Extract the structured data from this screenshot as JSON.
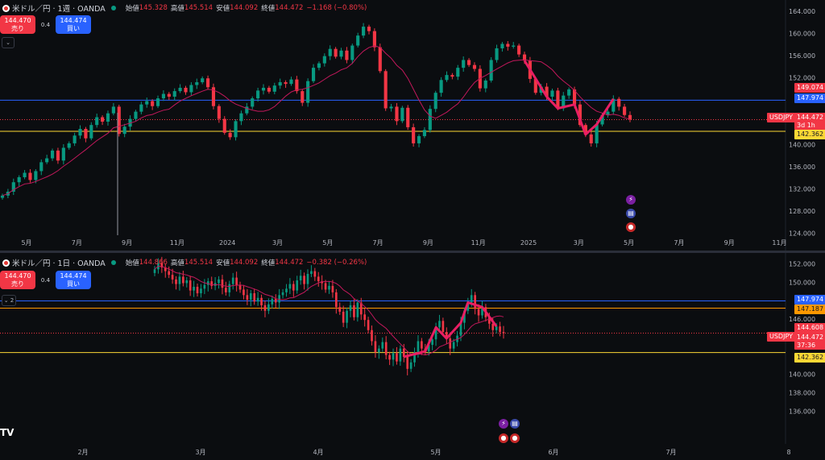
{
  "top": {
    "symbol": "米ドル／円 · 1週 · OANDA",
    "ohlc": {
      "open_label": "始値",
      "open": "145.328",
      "high_label": "高値",
      "high": "145.514",
      "low_label": "安値",
      "low": "144.092",
      "close_label": "終値",
      "close": "144.472",
      "change": "−1.168 (−0.80%)"
    },
    "sell": {
      "price": "144.470",
      "label": "売り"
    },
    "buy": {
      "price": "144.474",
      "label": "買い"
    },
    "spread": "0.4",
    "collapse": "⌄",
    "price_axis": [
      {
        "label": "164.000",
        "v": 164
      },
      {
        "label": "160.000",
        "v": 160
      },
      {
        "label": "156.000",
        "v": 156
      },
      {
        "label": "152.000",
        "v": 152
      },
      {
        "label": "140.000",
        "v": 140
      },
      {
        "label": "136.000",
        "v": 136
      },
      {
        "label": "132.000",
        "v": 132
      },
      {
        "label": "128.000",
        "v": 128
      },
      {
        "label": "124.000",
        "v": 124
      }
    ],
    "time_axis": [
      "5月",
      "7月",
      "9月",
      "11月",
      "2024",
      "3月",
      "5月",
      "7月",
      "9月",
      "11月",
      "2025",
      "3月",
      "5月",
      "7月",
      "9月",
      "11月"
    ],
    "tags": {
      "ma": "149.074",
      "blue": "147.974",
      "symbol": "USDJPY",
      "price": "144.472",
      "countdown": "3d 1h",
      "yellow": "142.362"
    },
    "levels": {
      "blue": 147.974,
      "yellow": 142.362,
      "price": 144.472,
      "ma": 149.074
    }
  },
  "bottom": {
    "symbol": "米ドル／円 · 1日 · OANDA",
    "ohlc": {
      "open_label": "始値",
      "open": "144.866",
      "high_label": "高値",
      "high": "145.514",
      "low_label": "安値",
      "low": "144.092",
      "close_label": "終値",
      "close": "144.472",
      "change": "−0.382 (−0.26%)"
    },
    "sell": {
      "price": "144.470",
      "label": "売り"
    },
    "buy": {
      "price": "144.474",
      "label": "買い"
    },
    "spread": "0.4",
    "collapse": "⌄ 2",
    "price_axis": [
      {
        "label": "152.000",
        "v": 152
      },
      {
        "label": "150.000",
        "v": 150
      },
      {
        "label": "146.000",
        "v": 146
      },
      {
        "label": "140.000",
        "v": 140
      },
      {
        "label": "138.000",
        "v": 138
      },
      {
        "label": "136.000",
        "v": 136
      }
    ],
    "time_axis": [
      "2月",
      "3月",
      "4月",
      "5月",
      "6月",
      "7月",
      "8"
    ],
    "tags": {
      "blue": "147.974",
      "orange": "147.187",
      "ma": "144.608",
      "symbol": "USDJPY",
      "price": "144.472",
      "countdown": "37:36",
      "yellow": "142.362"
    },
    "levels": {
      "blue": 147.974,
      "orange": 147.187,
      "yellow": 142.362,
      "price": 144.472,
      "ma": 144.608
    }
  },
  "logo_text": "TV",
  "colors": {
    "up": "#089981",
    "down": "#f23645",
    "blue_line": "#2962ff",
    "yellow_line": "#fdd835",
    "orange_line": "#ff9800",
    "ma": "#c2185b",
    "pink": "#e91e63"
  },
  "chart_data": [
    {
      "type": "candlestick",
      "title": "米ドル／円 · 1週 · OANDA",
      "ylim": [
        122.5,
        166
      ],
      "y_ticks": [
        164,
        160,
        156,
        152,
        140,
        136,
        132,
        128,
        124
      ],
      "x_ticks": [
        "5月",
        "7月",
        "9月",
        "11月",
        "2024",
        "3月",
        "5月",
        "7月",
        "9月",
        "11月",
        "2025",
        "3月",
        "5月",
        "7月",
        "9月",
        "11月"
      ],
      "candles_close": [
        130.8,
        131.5,
        133.2,
        134.1,
        134.9,
        133.6,
        135.2,
        136.8,
        137.5,
        138.9,
        137.1,
        139.4,
        140.2,
        141.6,
        142.8,
        141.1,
        143.5,
        144.9,
        144.1,
        145.6,
        146.8,
        141.9,
        143.2,
        144.6,
        145.9,
        147.2,
        147.8,
        146.9,
        148.3,
        149.1,
        148.6,
        149.6,
        150.2,
        149.4,
        150.7,
        151.2,
        151.9,
        150.3,
        146.9,
        144.6,
        142.1,
        141.3,
        144.2,
        145.6,
        146.8,
        148.3,
        149.7,
        150.2,
        149.5,
        150.6,
        151.2,
        150.9,
        151.7,
        149.6,
        147.5,
        151.4,
        153.8,
        154.6,
        155.9,
        157.2,
        155.8,
        156.9,
        155.2,
        157.8,
        159.6,
        161.2,
        160.4,
        157.5,
        153.2,
        146.5,
        146.8,
        144.2,
        146.6,
        143.1,
        140.2,
        141.5,
        142.6,
        146.4,
        149.3,
        151.6,
        152.5,
        152.2,
        153.8,
        155.2,
        154.3,
        153.6,
        150.1,
        151.5,
        155.2,
        157.3,
        158.1,
        157.6,
        157.8,
        156.2,
        155.1,
        151.8,
        149.3,
        150.4,
        148.6,
        149.7,
        146.5,
        148.8,
        149.9,
        147.2,
        143.5,
        141.8,
        140.2,
        143.6,
        145.3,
        145.9,
        148.2,
        146.8,
        145.3,
        144.47
      ],
      "moving_average_last": 149.074,
      "levels": [
        147.974,
        142.362
      ]
    },
    {
      "type": "candlestick",
      "title": "米ドル／円 · 1日 · OANDA",
      "ylim": [
        133.5,
        153
      ],
      "y_ticks": [
        152,
        150,
        146,
        140,
        138,
        136
      ],
      "x_ticks": [
        "2月",
        "3月",
        "4月",
        "5月",
        "6月",
        "7月",
        "8"
      ],
      "candles_close": [
        151.4,
        152.1,
        151.6,
        151.2,
        150.8,
        150.3,
        149.8,
        150.6,
        149.9,
        150.2,
        149.1,
        149.5,
        148.8,
        149.3,
        149.7,
        150.1,
        149.6,
        149.9,
        150.3,
        149.4,
        148.9,
        149.8,
        150.5,
        149.7,
        149.2,
        148.6,
        148.1,
        148.8,
        147.9,
        148.3,
        147.5,
        146.9,
        147.6,
        148.2,
        147.8,
        148.6,
        148.9,
        149.3,
        149.8,
        149.1,
        150.2,
        150.7,
        149.8,
        150.9,
        151.2,
        150.6,
        150.1,
        149.9,
        149.2,
        149.6,
        148.9,
        147.3,
        146.8,
        145.6,
        146.9,
        147.5,
        146.2,
        147.8,
        146.5,
        145.9,
        144.8,
        143.6,
        142.4,
        142.8,
        143.5,
        142.1,
        141.6,
        142.3,
        141.4,
        142.8,
        141.9,
        140.6,
        141.3,
        142.4,
        143.6,
        142.8,
        142.5,
        143.2,
        143.8,
        145.1,
        145.8,
        144.6,
        143.9,
        142.8,
        143.5,
        144.2,
        145.6,
        146.9,
        147.8,
        148.6,
        147.1,
        146.4,
        147.3,
        146.2,
        145.5,
        144.8,
        145.2,
        144.6,
        144.47
      ],
      "moving_average_last": 144.608,
      "levels": [
        147.974,
        147.187,
        142.362
      ]
    }
  ]
}
